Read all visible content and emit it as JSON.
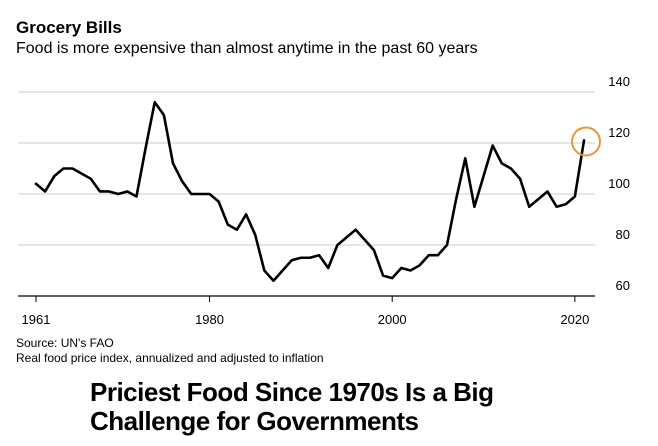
{
  "header": {
    "title": "Grocery Bills",
    "subtitle": "Food is more expensive than almost anytime in the past 60 years"
  },
  "footer": {
    "source": "Source: UN's FAO",
    "note": "Real food price index, annualized and adjusted to inflation"
  },
  "headline": "Priciest Food Since 1970s Is a Big Challenge for Governments",
  "colors": {
    "line": "#000000",
    "highlight": "#e8963a",
    "gridline": "#cccccc"
  },
  "chart_data": {
    "type": "line",
    "title": "Grocery Bills",
    "subtitle": "Food is more expensive than almost anytime in the past 60 years",
    "xlabel": "",
    "ylabel": "",
    "xlim": [
      1961,
      2021
    ],
    "ylim": [
      60,
      140
    ],
    "x_ticks": [
      1961,
      1980,
      2000,
      2020
    ],
    "y_ticks": [
      60,
      80,
      100,
      120,
      140
    ],
    "grid": "horizontal",
    "y_axis_position": "right",
    "series": [
      {
        "name": "",
        "x": [
          1961,
          1962,
          1963,
          1964,
          1965,
          1966,
          1967,
          1968,
          1969,
          1970,
          1971,
          1972,
          1973,
          1974,
          1975,
          1976,
          1977,
          1978,
          1979,
          1980,
          1981,
          1982,
          1983,
          1984,
          1985,
          1986,
          1987,
          1988,
          1989,
          1990,
          1991,
          1992,
          1993,
          1994,
          1995,
          1996,
          1997,
          1998,
          1999,
          2000,
          2001,
          2002,
          2003,
          2004,
          2005,
          2006,
          2007,
          2008,
          2009,
          2010,
          2011,
          2012,
          2013,
          2014,
          2015,
          2016,
          2017,
          2018,
          2019,
          2020,
          2021
        ],
        "y": [
          104,
          101,
          107,
          110,
          110,
          108,
          106,
          101,
          101,
          100,
          101,
          99,
          118,
          136,
          131,
          112,
          105,
          100,
          100,
          100,
          97,
          88,
          86,
          92,
          84,
          70,
          66,
          70,
          74,
          75,
          75,
          76,
          71,
          80,
          83,
          86,
          82,
          78,
          68,
          67,
          71,
          70,
          72,
          76,
          76,
          80,
          98,
          114,
          95,
          107,
          119,
          112,
          110,
          106,
          95,
          98,
          101,
          95,
          96,
          99,
          121
        ]
      }
    ],
    "annotations": [
      {
        "type": "circle",
        "x": 2021,
        "y": 121
      }
    ]
  }
}
